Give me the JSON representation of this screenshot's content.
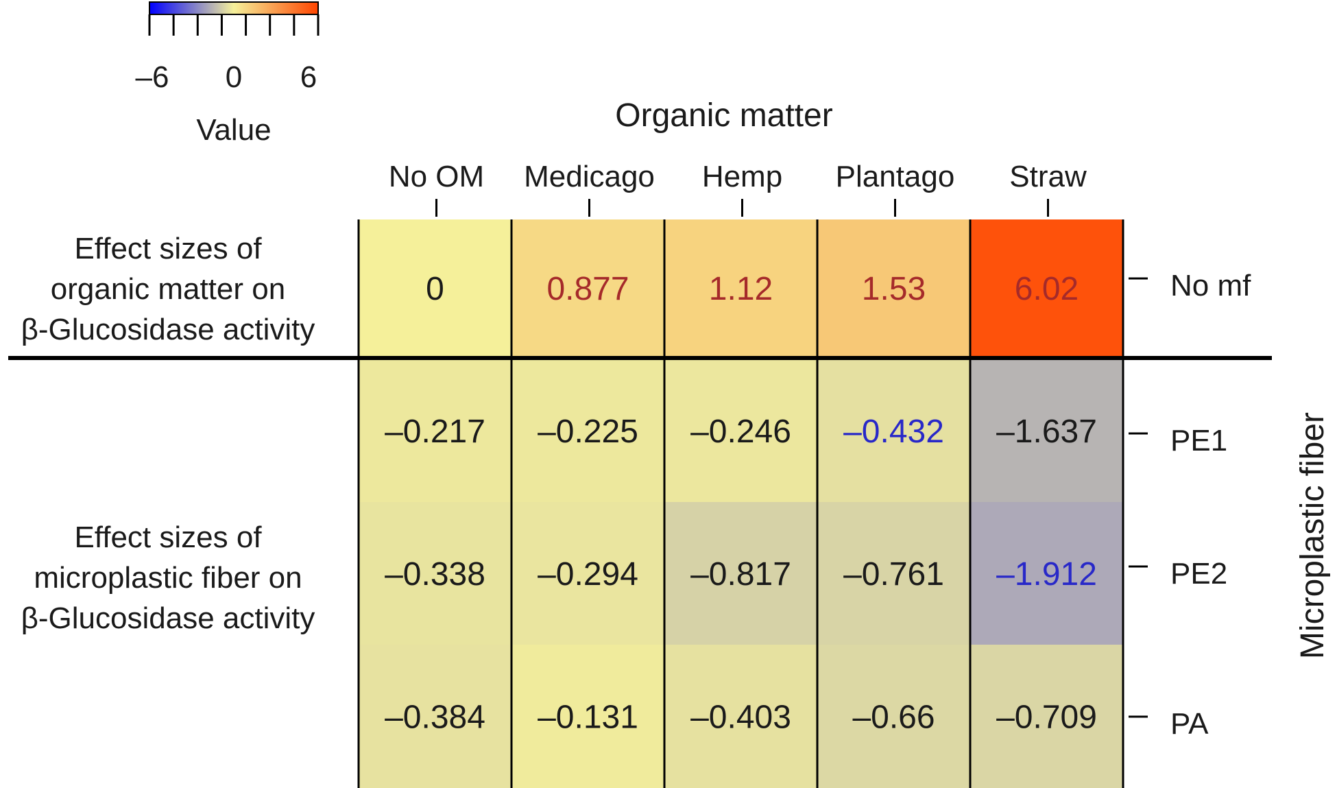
{
  "chart_data": {
    "type": "heatmap",
    "title": "",
    "column_axis_title": "Organic matter",
    "row_axis_title": "Microplastic fiber",
    "columns": [
      "No OM",
      "Medicago",
      "Hemp",
      "Plantago",
      "Straw"
    ],
    "rows": [
      "No mf",
      "PE1",
      "PE2",
      "PA"
    ],
    "values": [
      [
        0,
        0.877,
        1.12,
        1.53,
        6.02
      ],
      [
        -0.217,
        -0.225,
        -0.246,
        -0.432,
        -1.637
      ],
      [
        -0.338,
        -0.294,
        -0.817,
        -0.761,
        -1.912
      ],
      [
        -0.384,
        -0.131,
        -0.403,
        -0.66,
        -0.709
      ]
    ],
    "value_labels": [
      [
        "0",
        "0.877",
        "1.12",
        "1.53",
        "6.02"
      ],
      [
        "–0.217",
        "–0.225",
        "–0.246",
        "–0.432",
        "–1.637"
      ],
      [
        "–0.338",
        "–0.294",
        "–0.817",
        "–0.761",
        "–1.912"
      ],
      [
        "–0.384",
        "–0.131",
        "–0.403",
        "–0.66",
        "–0.709"
      ]
    ],
    "label_colors": [
      [
        "#1a1a1a",
        "#a52a2a",
        "#a52a2a",
        "#a52a2a",
        "#a52a2a"
      ],
      [
        "#1a1a1a",
        "#1a1a1a",
        "#1a1a1a",
        "#2828c8",
        "#1a1a1a"
      ],
      [
        "#1a1a1a",
        "#1a1a1a",
        "#1a1a1a",
        "#1a1a1a",
        "#2828c8"
      ],
      [
        "#1a1a1a",
        "#1a1a1a",
        "#1a1a1a",
        "#1a1a1a",
        "#1a1a1a"
      ]
    ],
    "row_groups": [
      {
        "label": "Effect sizes of organic matter on β-Glucosidase activity",
        "lines": [
          "Effect sizes of",
          "organic matter on",
          "β-Glucosidase activity"
        ]
      },
      {
        "label": "Effect sizes of microplastic fiber on β-Glucosidase activity",
        "lines": [
          "Effect sizes of",
          "microplastic fiber on",
          "β-Glucosidase activity"
        ]
      }
    ],
    "colorbar": {
      "title": "Value",
      "range": [
        -6.5,
        6.5
      ],
      "ticks": [
        "–6",
        "0",
        "6"
      ],
      "colors": [
        "#0000ff",
        "#f5f09a",
        "#ff4500"
      ]
    }
  }
}
